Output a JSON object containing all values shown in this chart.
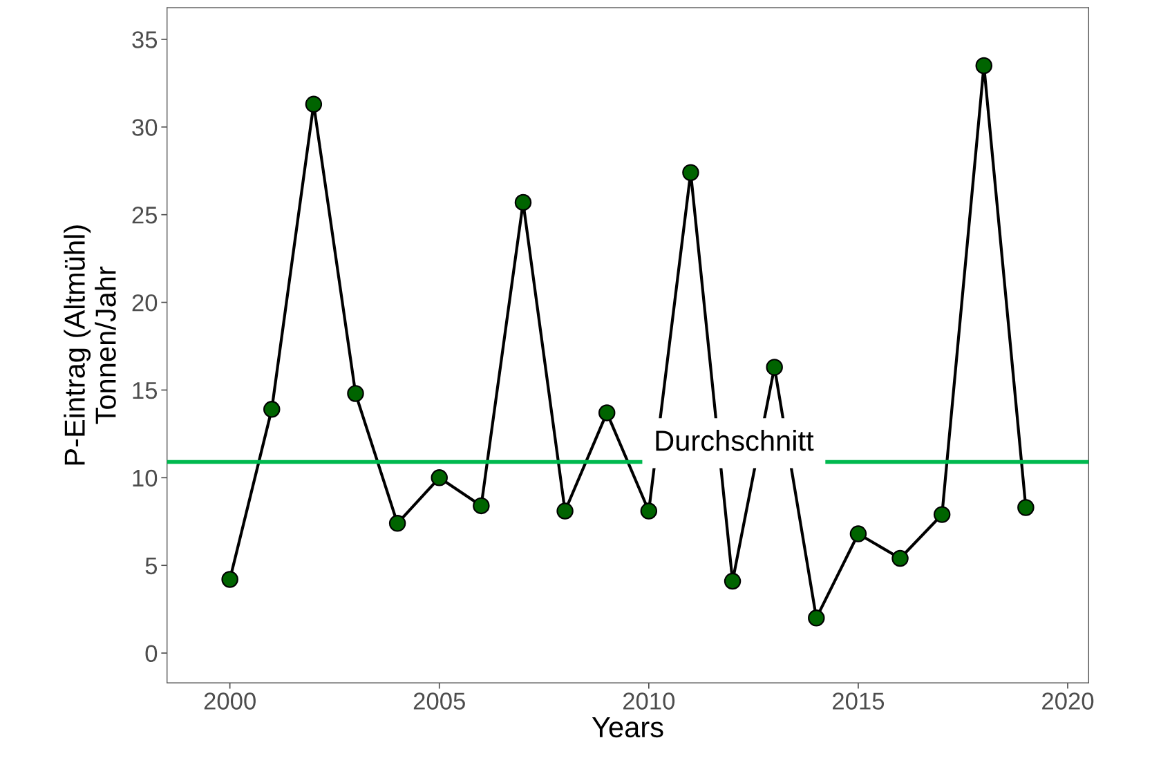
{
  "chart_data": {
    "type": "line",
    "xlabel": "Years",
    "ylabel": "P-Eintrag (Altmühl)\nTonnen/Jahr",
    "x": [
      2000,
      2001,
      2002,
      2003,
      2004,
      2005,
      2006,
      2007,
      2008,
      2009,
      2010,
      2011,
      2012,
      2013,
      2014,
      2015,
      2016,
      2017,
      2018,
      2019
    ],
    "series": [
      {
        "color": "#006400",
        "values": [
          4.2,
          13.9,
          31.3,
          14.8,
          7.4,
          10.0,
          8.4,
          25.7,
          8.1,
          13.7,
          8.1,
          27.4,
          4.1,
          16.3,
          2.0,
          6.8,
          5.4,
          7.9,
          33.5,
          8.3
        ]
      }
    ],
    "xlim": [
      1998.5,
      2020.5
    ],
    "xticks": [
      2000,
      2005,
      2010,
      2015,
      2020
    ],
    "ylim": [
      -1.7,
      36.8
    ],
    "yticks": [
      0,
      5,
      10,
      15,
      20,
      25,
      30,
      35
    ],
    "ref_lines": [
      {
        "axis": "y",
        "value": 10.9,
        "label": "Durchschnitt",
        "color": "#00b94f"
      }
    ],
    "marker": "circle",
    "line_style": "solid",
    "grid": false,
    "legend": false
  }
}
